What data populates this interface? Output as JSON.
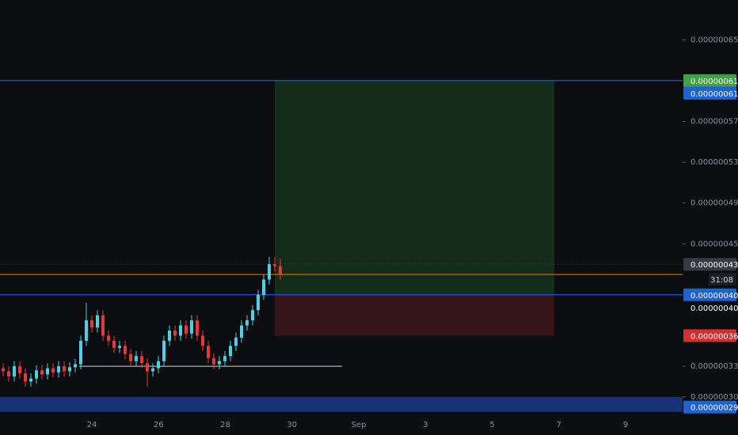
{
  "chart_data": {
    "type": "candlestick",
    "ylim": [
      2.82e-07,
      6.89e-07
    ],
    "yticks": [
      {
        "value": 6.5e-07,
        "label": "0.00000065"
      },
      {
        "value": 5.7e-07,
        "label": "0.00000057"
      },
      {
        "value": 5.3e-07,
        "label": "0.00000053"
      },
      {
        "value": 4.9e-07,
        "label": "0.00000049"
      },
      {
        "value": 4.5e-07,
        "label": "0.00000045"
      },
      {
        "value": 3.3e-07,
        "label": "0.00000033"
      },
      {
        "value": 3e-07,
        "label": "0.00000030"
      }
    ],
    "x_labels": [
      "24",
      "26",
      "28",
      "30",
      "Sep",
      "3",
      "5",
      "7",
      "9"
    ],
    "up_color": "#4dd0e1",
    "down_color": "#e53935",
    "open": [
      3.28e-07,
      3.25e-07,
      3.2e-07,
      3.3e-07,
      3.23e-07,
      3.15e-07,
      3.18e-07,
      3.26e-07,
      3.22e-07,
      3.28e-07,
      3.24e-07,
      3.3e-07,
      3.25e-07,
      3.29e-07,
      3.32e-07,
      3.55e-07,
      3.75e-07,
      3.68e-07,
      3.8e-07,
      3.6e-07,
      3.55e-07,
      3.48e-07,
      3.5e-07,
      3.42e-07,
      3.35e-07,
      3.4e-07,
      3.33e-07,
      3.25e-07,
      3.28e-07,
      3.35e-07,
      3.55e-07,
      3.65e-07,
      3.6e-07,
      3.7e-07,
      3.62e-07,
      3.75e-07,
      3.6e-07,
      3.5e-07,
      3.38e-07,
      3.32e-07,
      3.35e-07,
      3.4e-07,
      3.5e-07,
      3.58e-07,
      3.7e-07,
      3.75e-07,
      3.85e-07,
      4e-07,
      4.15e-07,
      4.3e-07,
      4.28e-07
    ],
    "high": [
      3.33e-07,
      3.3e-07,
      3.35e-07,
      3.35e-07,
      3.28e-07,
      3.23e-07,
      3.31e-07,
      3.31e-07,
      3.33e-07,
      3.33e-07,
      3.35e-07,
      3.35e-07,
      3.34e-07,
      3.37e-07,
      3.6e-07,
      3.92e-07,
      3.8e-07,
      3.85e-07,
      3.85e-07,
      3.65e-07,
      3.6e-07,
      3.55e-07,
      3.55e-07,
      3.47e-07,
      3.45e-07,
      3.45e-07,
      3.38e-07,
      3.33e-07,
      3.4e-07,
      3.6e-07,
      3.7e-07,
      3.7e-07,
      3.75e-07,
      3.75e-07,
      3.8e-07,
      3.8e-07,
      3.65e-07,
      3.55e-07,
      3.43e-07,
      3.4e-07,
      3.45e-07,
      3.55e-07,
      3.63e-07,
      3.75e-07,
      3.8e-07,
      3.9e-07,
      4.05e-07,
      4.2e-07,
      4.37e-07,
      4.37e-07,
      4.35e-07
    ],
    "low": [
      3.2e-07,
      3.15e-07,
      3.15e-07,
      3.18e-07,
      3.1e-07,
      3.1e-07,
      3.13e-07,
      3.17e-07,
      3.17e-07,
      3.19e-07,
      3.19e-07,
      3.2e-07,
      3.2e-07,
      3.24e-07,
      3.27e-07,
      3.5e-07,
      3.63e-07,
      3.63e-07,
      3.55e-07,
      3.5e-07,
      3.43e-07,
      3.43e-07,
      3.37e-07,
      3.3e-07,
      3.3e-07,
      3.28e-07,
      3.1e-07,
      3.2e-07,
      3.23e-07,
      3.3e-07,
      3.5e-07,
      3.55e-07,
      3.55e-07,
      3.57e-07,
      3.57e-07,
      3.55e-07,
      3.45e-07,
      3.33e-07,
      3.27e-07,
      3.27e-07,
      3.3e-07,
      3.35e-07,
      3.45e-07,
      3.53e-07,
      3.65e-07,
      3.7e-07,
      3.8e-07,
      3.95e-07,
      4.1e-07,
      4.23e-07,
      4.15e-07
    ],
    "close": [
      3.25e-07,
      3.2e-07,
      3.3e-07,
      3.23e-07,
      3.15e-07,
      3.18e-07,
      3.26e-07,
      3.22e-07,
      3.28e-07,
      3.24e-07,
      3.3e-07,
      3.25e-07,
      3.29e-07,
      3.32e-07,
      3.55e-07,
      3.75e-07,
      3.68e-07,
      3.8e-07,
      3.6e-07,
      3.55e-07,
      3.48e-07,
      3.5e-07,
      3.42e-07,
      3.35e-07,
      3.4e-07,
      3.33e-07,
      3.25e-07,
      3.28e-07,
      3.35e-07,
      3.55e-07,
      3.65e-07,
      3.6e-07,
      3.7e-07,
      3.62e-07,
      3.75e-07,
      3.6e-07,
      3.5e-07,
      3.38e-07,
      3.32e-07,
      3.35e-07,
      3.4e-07,
      3.5e-07,
      3.58e-07,
      3.7e-07,
      3.75e-07,
      3.85e-07,
      4e-07,
      4.15e-07,
      4.3e-07,
      4.28e-07,
      4.2e-07
    ],
    "levels": [
      {
        "value": 6.1e-07,
        "color": "#2962ff"
      },
      {
        "value": 4e-07,
        "color": "#2962ff"
      },
      {
        "value": 4.2e-07,
        "color": "#f57c00"
      }
    ],
    "support": {
      "value": 3.3e-07,
      "color": "#d1d4dc"
    },
    "position": {
      "target": 6.1e-07,
      "entry": 4e-07,
      "stop": 3.6e-07,
      "profit_color": "#15301c",
      "loss_color": "#3a1417"
    },
    "band": {
      "top": 3e-07,
      "bottom": 2.9e-07,
      "color": "#1a3a8a"
    },
    "price_labels": [
      {
        "value": 6.1e-07,
        "label": "0.00000061",
        "color": "#43a047"
      },
      {
        "value": 6.1e-07,
        "label": "0.00000061",
        "color": "#1e63d6"
      },
      {
        "value": 4.3e-07,
        "label": "0.00000043",
        "color": "#363a45"
      },
      {
        "value": 4e-07,
        "label": "0.00000040",
        "color": "#1e63d6"
      },
      {
        "value": 4e-07,
        "label": "0.00000040",
        "color": "#0c0d10"
      },
      {
        "value": 3.6e-07,
        "label": "0.00000036",
        "color": "#d32f2f"
      },
      {
        "value": 2.9e-07,
        "label": "0.00000029",
        "color": "#1e63d6"
      }
    ],
    "countdown": "31:08"
  }
}
